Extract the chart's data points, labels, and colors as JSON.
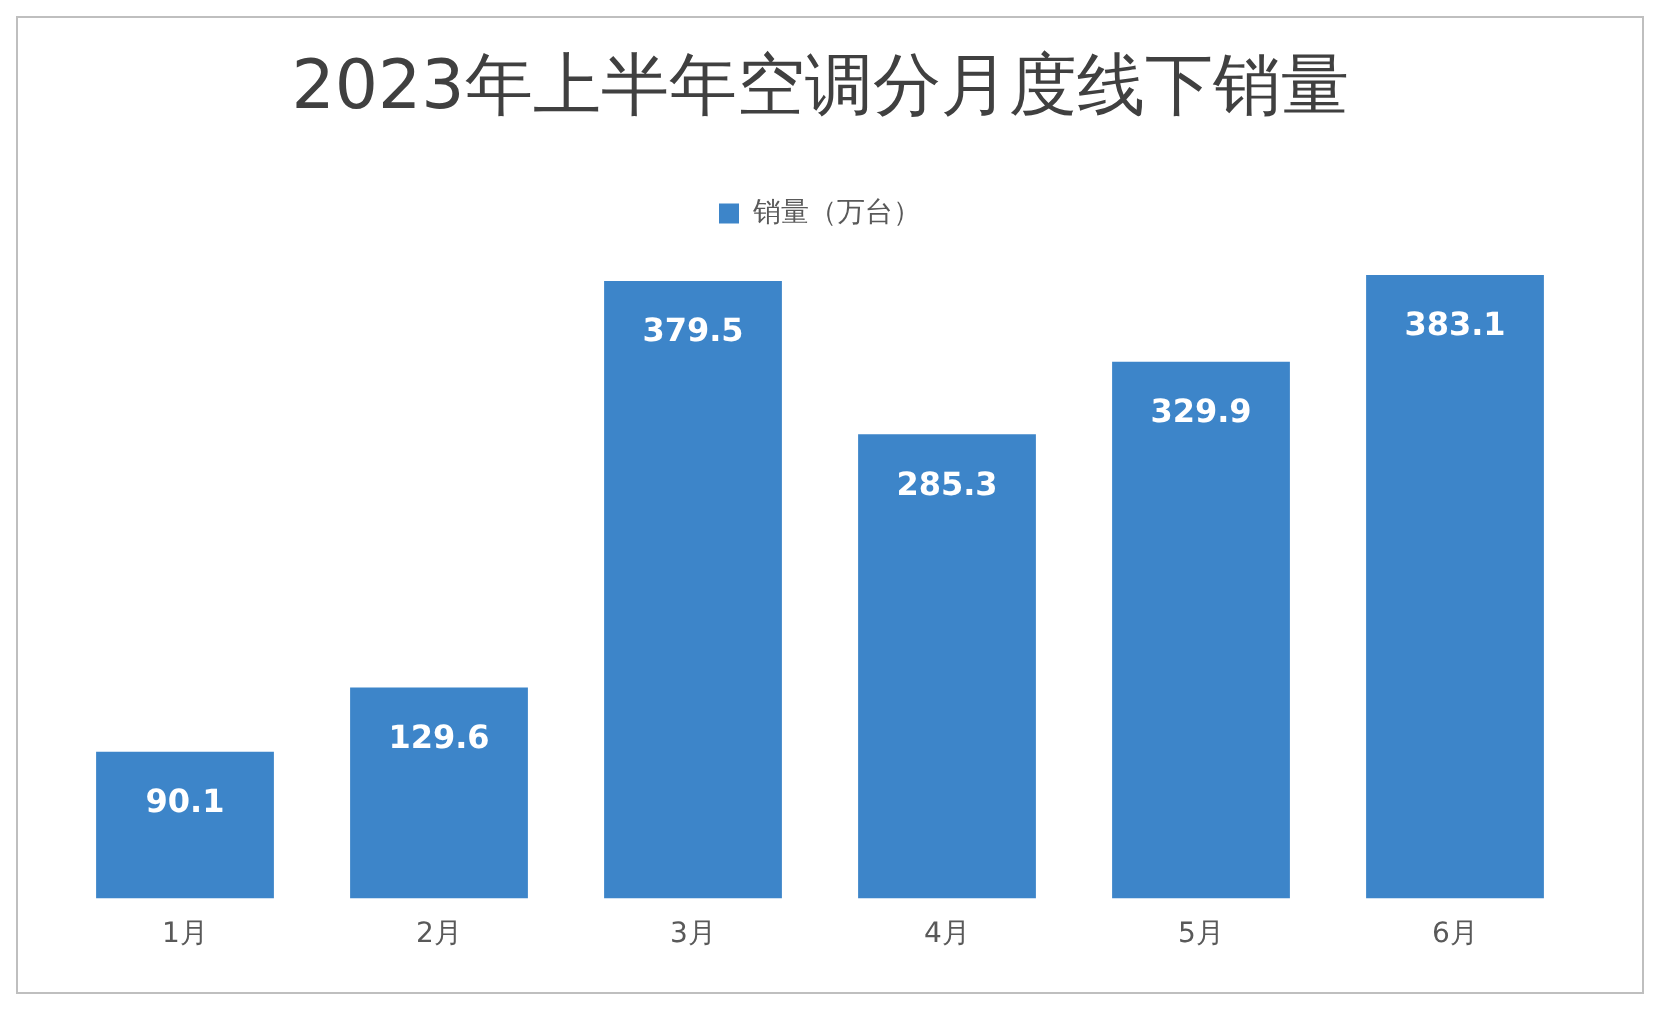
{
  "chart_data": {
    "type": "bar",
    "title": "2023年上半年空调分月度线下销量",
    "categories": [
      "1月",
      "2月",
      "3月",
      "4月",
      "5月",
      "6月"
    ],
    "series": [
      {
        "name": "销量（万台）",
        "color": "#3d85c9",
        "values": [
          90.1,
          129.6,
          379.5,
          285.3,
          329.9,
          383.1
        ]
      }
    ],
    "data_labels": true,
    "legend": "top",
    "grid": false
  }
}
